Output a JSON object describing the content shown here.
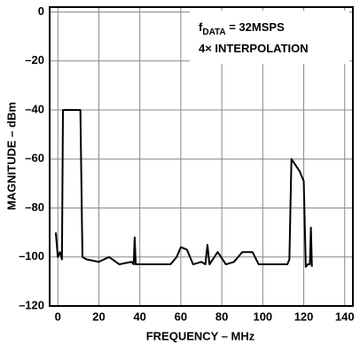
{
  "chart_data": {
    "type": "line",
    "xlabel": "FREQUENCY – MHz",
    "ylabel": "MAGNITUDE – dBm",
    "annotation_lines": [
      [
        "f",
        "DATA",
        " = 32MSPS"
      ],
      [
        "4× INTERPOLATION"
      ]
    ],
    "x": [
      -1,
      0,
      1,
      2,
      2.5,
      10,
      11,
      12,
      14,
      20,
      25,
      30,
      36,
      37,
      37.5,
      38,
      45,
      55,
      58,
      60,
      63,
      66,
      70,
      72,
      73,
      74,
      78,
      82,
      86,
      90,
      95,
      98,
      105,
      112,
      113,
      114,
      118,
      120,
      121,
      122,
      123,
      123.5,
      124
    ],
    "series": [
      {
        "color": "#000000",
        "values": [
          -90,
          -100,
          -98,
          -101,
          -40,
          -40,
          -40,
          -100,
          -101,
          -102,
          -100,
          -103,
          -102,
          -103,
          -92,
          -103,
          -103,
          -103,
          -100,
          -96,
          -97,
          -103,
          -102,
          -103,
          -95,
          -103,
          -98,
          -103,
          -102,
          -98,
          -98,
          -103,
          -103,
          -103,
          -101,
          -60,
          -65,
          -69,
          -104,
          -103,
          -103,
          -88,
          -104
        ]
      }
    ],
    "xlim": [
      -4,
      144
    ],
    "ylim": [
      -120,
      2
    ],
    "xticks": [
      0,
      20,
      40,
      60,
      80,
      100,
      120,
      140
    ],
    "yticks": [
      0,
      {
        "value": -20,
        "label": "–20"
      },
      {
        "value": -40,
        "label": "–40"
      },
      {
        "value": -60,
        "label": "–60"
      },
      {
        "value": -80,
        "label": "–80"
      },
      {
        "value": -100,
        "label": "–100"
      },
      {
        "value": -120,
        "label": "–120"
      }
    ],
    "grid": true
  }
}
